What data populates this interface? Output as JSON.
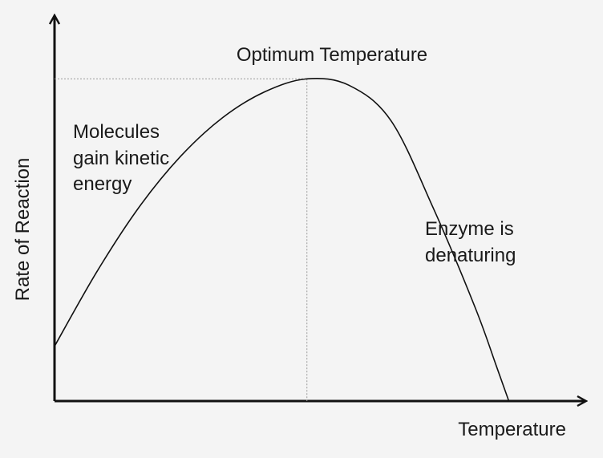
{
  "chart_data": {
    "type": "line",
    "title": "Optimum Temperature",
    "xlabel": "Temperature",
    "ylabel": "Rate of Reaction",
    "grid": false,
    "legend": "none",
    "axis_ticks": "none",
    "annotations": {
      "rising": [
        "Molecules",
        "gain kinetic",
        "energy"
      ],
      "falling": [
        "Enzyme is",
        "denaturing"
      ]
    },
    "series": [
      {
        "points": [
          [
            0.0,
            0.17
          ],
          [
            0.1,
            0.4
          ],
          [
            0.2,
            0.6
          ],
          [
            0.3,
            0.76
          ],
          [
            0.4,
            0.88
          ],
          [
            0.5,
            0.96
          ],
          [
            0.6,
            1.0
          ],
          [
            0.7,
            0.98
          ],
          [
            0.8,
            0.87
          ],
          [
            0.9,
            0.6
          ],
          [
            1.0,
            0.29
          ],
          [
            1.05,
            0.11
          ],
          [
            1.08,
            0.0
          ]
        ]
      }
    ],
    "optimum": {
      "x": 0.6,
      "y": 1.0
    },
    "xlim": [
      0,
      1.22
    ],
    "ylim": [
      0,
      1.18
    ],
    "colors": {
      "line": "#111111",
      "axis": "#111111",
      "guide": "#9a9a9a",
      "background": "#f4f4f4"
    }
  }
}
